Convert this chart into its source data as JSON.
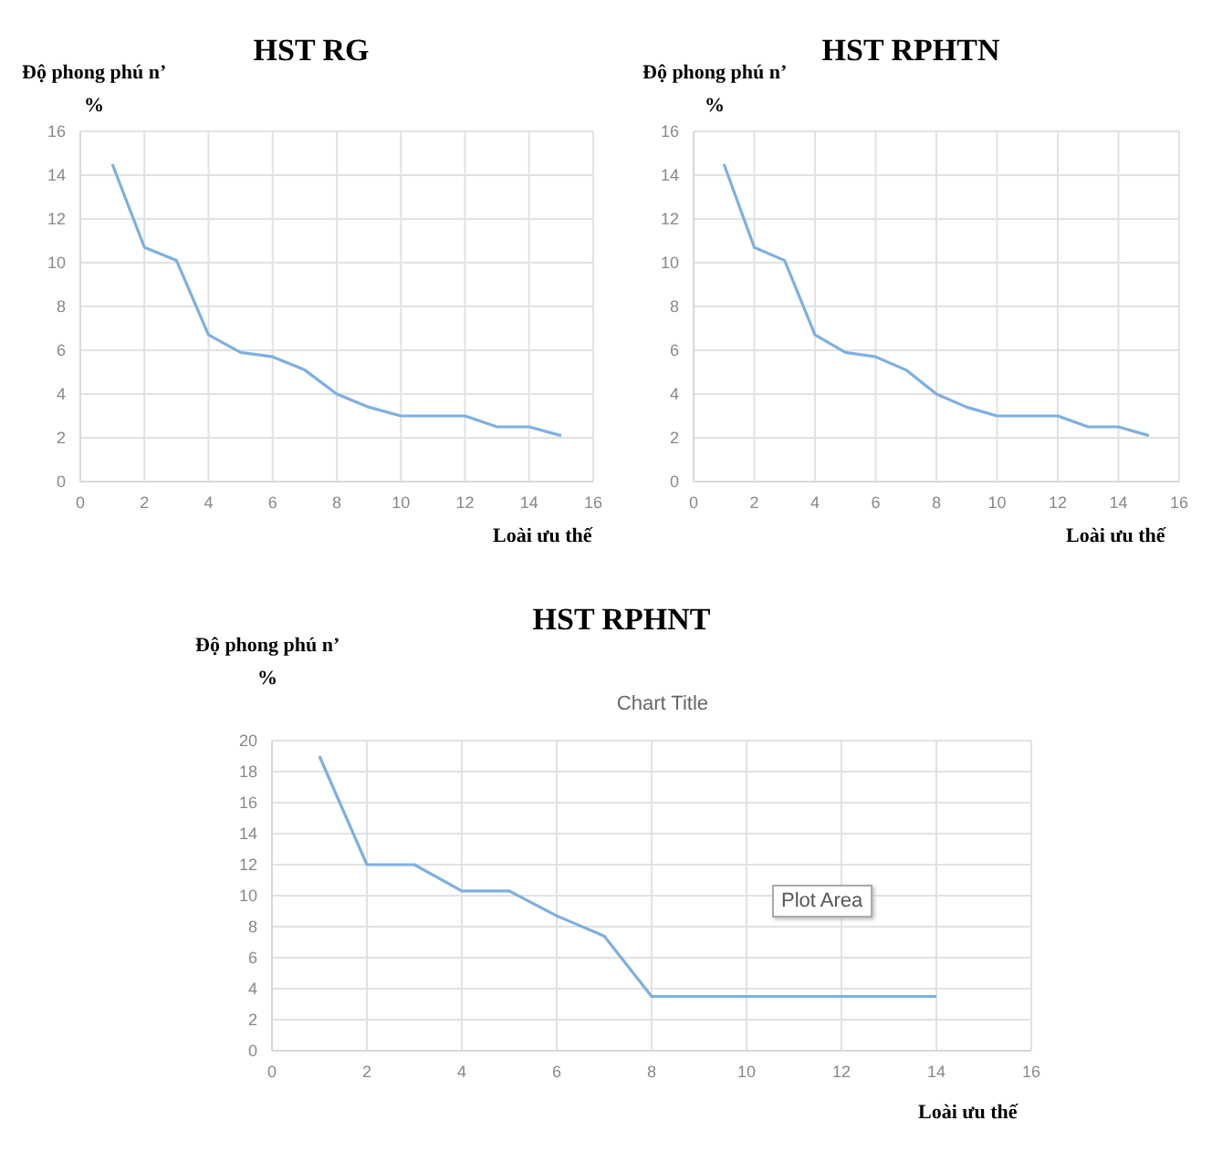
{
  "chart_data": [
    {
      "type": "line",
      "title": "HST RG",
      "ylabel": "Độ phong phú n’\n%",
      "xlabel": "Loài ưu thế",
      "x": [
        1,
        2,
        3,
        4,
        5,
        6,
        7,
        8,
        9,
        10,
        11,
        12,
        13,
        14,
        15
      ],
      "series": [
        {
          "color": "#7eb0e0",
          "values": [
            14.5,
            10.7,
            10.1,
            6.7,
            5.9,
            5.7,
            5.1,
            4.0,
            3.4,
            3.0,
            3.0,
            3.0,
            2.5,
            2.5,
            2.1
          ]
        }
      ],
      "xlim": [
        0,
        16
      ],
      "xticks": [
        0,
        2,
        4,
        6,
        8,
        10,
        12,
        14,
        16
      ],
      "ylim": [
        0,
        16
      ],
      "yticks": [
        0,
        2,
        4,
        6,
        8,
        10,
        12,
        14,
        16
      ],
      "grid": true,
      "legend": false,
      "marker": "none",
      "line_style": "solid"
    },
    {
      "type": "line",
      "title": "HST RPHTN",
      "ylabel": "Độ phong phú n’\n%",
      "xlabel": "Loài ưu thế",
      "x": [
        1,
        2,
        3,
        4,
        5,
        6,
        7,
        8,
        9,
        10,
        11,
        12,
        13,
        14,
        15
      ],
      "series": [
        {
          "color": "#7eb0e0",
          "values": [
            14.5,
            10.7,
            10.1,
            6.7,
            5.9,
            5.7,
            5.1,
            4.0,
            3.4,
            3.0,
            3.0,
            3.0,
            2.5,
            2.5,
            2.1
          ]
        }
      ],
      "xlim": [
        0,
        16
      ],
      "xticks": [
        0,
        2,
        4,
        6,
        8,
        10,
        12,
        14,
        16
      ],
      "ylim": [
        0,
        16
      ],
      "yticks": [
        0,
        2,
        4,
        6,
        8,
        10,
        12,
        14,
        16
      ],
      "grid": true,
      "legend": false,
      "marker": "none",
      "line_style": "solid"
    },
    {
      "type": "line",
      "title": "HST RPHNT",
      "subtitle": "Chart Title",
      "ylabel": "Độ phong phú n’\n%",
      "xlabel": "Loài ưu thế",
      "annotations": [
        "Plot Area"
      ],
      "x": [
        1,
        2,
        3,
        4,
        5,
        6,
        7,
        8,
        9,
        10,
        11,
        12,
        13,
        14
      ],
      "series": [
        {
          "color": "#7eb0e0",
          "values": [
            19,
            12,
            12,
            10.3,
            10.3,
            8.7,
            7.4,
            3.5,
            3.5,
            3.5,
            3.5,
            3.5,
            3.5,
            3.5
          ]
        }
      ],
      "xlim": [
        0,
        16
      ],
      "xticks": [
        0,
        2,
        4,
        6,
        8,
        10,
        12,
        14,
        16
      ],
      "ylim": [
        0,
        20
      ],
      "yticks": [
        0,
        2,
        4,
        6,
        8,
        10,
        12,
        14,
        16,
        18,
        20
      ],
      "grid": true,
      "legend": false,
      "marker": "none",
      "line_style": "solid"
    }
  ]
}
